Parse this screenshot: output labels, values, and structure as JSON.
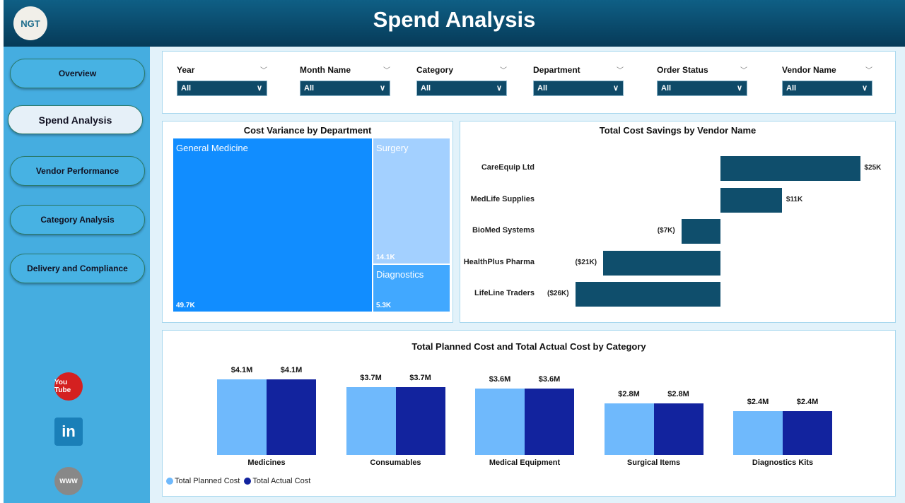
{
  "header": {
    "title": "Spend Analysis",
    "logo_text": "NGT"
  },
  "sidebar": {
    "items": [
      {
        "label": "Overview"
      },
      {
        "label": "Spend Analysis",
        "active": true
      },
      {
        "label": "Vendor Performance"
      },
      {
        "label": "Category Analysis"
      },
      {
        "label": "Delivery and Compliance"
      }
    ],
    "social": [
      {
        "icon": "youtube-icon",
        "label": "You Tube"
      },
      {
        "icon": "linkedin-icon",
        "label": "in"
      },
      {
        "icon": "globe-icon",
        "label": "WWW"
      }
    ]
  },
  "filters": [
    {
      "label": "Year",
      "value": "All"
    },
    {
      "label": "Month Name",
      "value": "All"
    },
    {
      "label": "Category",
      "value": "All"
    },
    {
      "label": "Department",
      "value": "All"
    },
    {
      "label": "Order Status",
      "value": "All"
    },
    {
      "label": "Vendor Name",
      "value": "All"
    }
  ],
  "chart_data": [
    {
      "type": "treemap",
      "title": "Cost Variance by Department",
      "items": [
        {
          "name": "General Medicine",
          "value": 49.7,
          "label": "49.7K"
        },
        {
          "name": "Surgery",
          "value": 14.1,
          "label": "14.1K"
        },
        {
          "name": "Diagnostics",
          "value": 5.3,
          "label": "5.3K"
        }
      ],
      "colors": [
        "#118dff",
        "#a3d0ff",
        "#41a8ff"
      ]
    },
    {
      "type": "bar",
      "orientation": "horizontal",
      "title": "Total Cost Savings by Vendor Name",
      "categories": [
        "CareEquip Ltd",
        "MedLife Supplies",
        "BioMed Systems",
        "HealthPlus Pharma",
        "LifeLine Traders"
      ],
      "values": [
        25,
        11,
        -7,
        -21,
        -26
      ],
      "labels": [
        "$25K",
        "$11K",
        "($7K)",
        "($21K)",
        "($26K)"
      ],
      "unit": "K",
      "color": "#0f4e6c"
    },
    {
      "type": "bar",
      "title": "Total Planned Cost and Total Actual Cost by Category",
      "categories": [
        "Medicines",
        "Consumables",
        "Medical Equipment",
        "Surgical Items",
        "Diagnostics Kits"
      ],
      "series": [
        {
          "name": "Total Planned Cost",
          "values": [
            4.1,
            3.7,
            3.6,
            2.8,
            2.4
          ],
          "labels": [
            "$4.1M",
            "$3.7M",
            "$3.6M",
            "$2.8M",
            "$2.4M"
          ],
          "color": "#6fb9fc"
        },
        {
          "name": "Total Actual Cost",
          "values": [
            4.1,
            3.7,
            3.6,
            2.8,
            2.4
          ],
          "labels": [
            "$4.1M",
            "$3.7M",
            "$3.6M",
            "$2.8M",
            "$2.4M"
          ],
          "color": "#12239e"
        }
      ],
      "legend": "bottom-left",
      "ylim": [
        0,
        4.1
      ]
    }
  ]
}
